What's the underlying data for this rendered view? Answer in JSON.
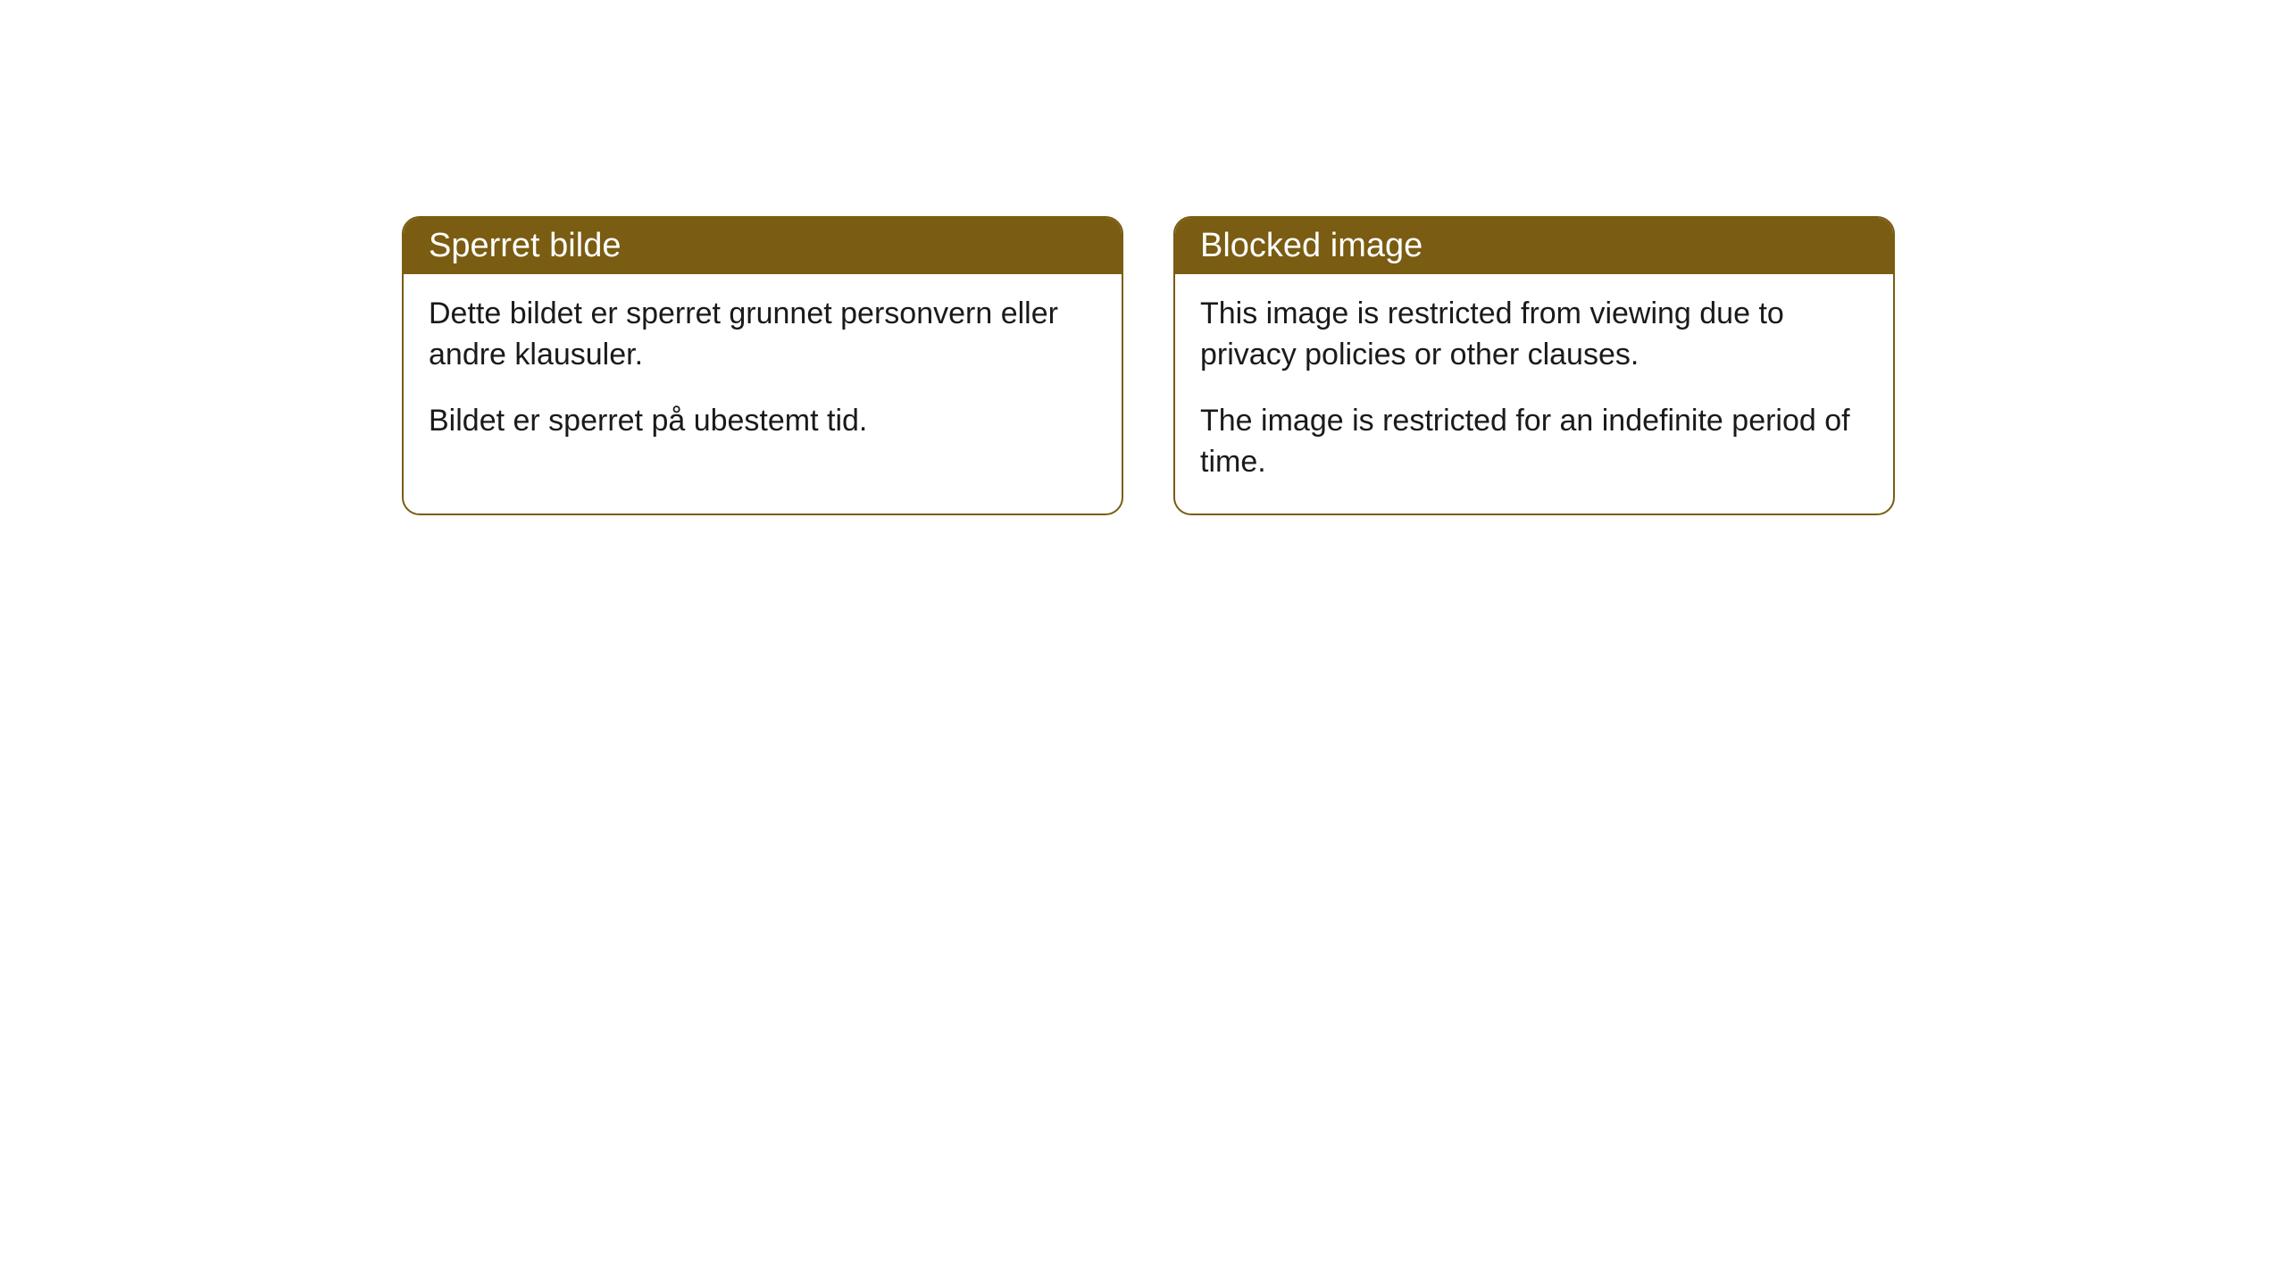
{
  "cards": [
    {
      "title": "Sperret bilde",
      "paragraph1": "Dette bildet er sperret grunnet personvern eller andre klausuler.",
      "paragraph2": "Bildet er sperret på ubestemt tid."
    },
    {
      "title": "Blocked image",
      "paragraph1": "This image is restricted from viewing due to privacy policies or other clauses.",
      "paragraph2": "The image is restricted for an indefinite period of time."
    }
  ],
  "styling": {
    "header_bg_color": "#7a5c12",
    "header_text_color": "#ffffff",
    "border_color": "#7a5c12",
    "body_bg_color": "#ffffff",
    "body_text_color": "#1a1a1a",
    "border_radius": 20,
    "header_fontsize": 38,
    "body_fontsize": 34
  }
}
